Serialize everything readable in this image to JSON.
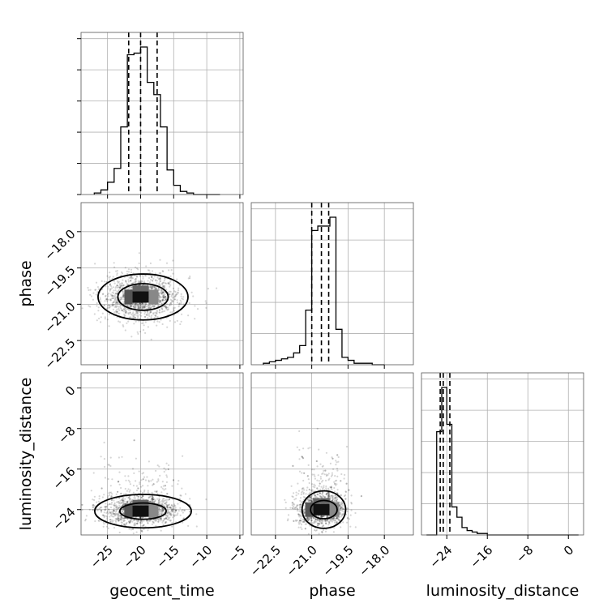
{
  "chart_data": {
    "type": "corner",
    "parameters": [
      "geocent_time",
      "phase",
      "luminosity_distance"
    ],
    "ranges": {
      "geocent_time": [
        -29,
        -4.5
      ],
      "phase": [
        -23.5,
        -16.8
      ],
      "luminosity_distance": [
        -29,
        3
      ]
    },
    "ticks": {
      "geocent_time": [
        -25,
        -20,
        -15,
        -10,
        -5
      ],
      "phase": [
        -22.5,
        -21.0,
        -19.5,
        -18.0
      ],
      "luminosity_distance": [
        -24,
        -16,
        -8,
        0
      ]
    },
    "tick_labels": {
      "geocent_time": [
        "−25",
        "−20",
        "−15",
        "−10",
        "−5"
      ],
      "phase": [
        "−22.5",
        "−21.0",
        "−19.5",
        "−18.0"
      ],
      "luminosity_distance": [
        "−24",
        "−16",
        "−8",
        "0"
      ]
    },
    "quantiles": {
      "geocent_time": [
        -21.8,
        -20.0,
        -17.5
      ],
      "phase": [
        -21.0,
        -20.6,
        -20.3
      ],
      "luminosity_distance": [
        -25.3,
        -24.7,
        -23.4
      ]
    },
    "histograms": {
      "geocent_time": {
        "edges": [
          -27,
          -26,
          -25,
          -24,
          -23,
          -22,
          -21,
          -20,
          -19,
          -18,
          -17,
          -16,
          -15,
          -14,
          -13,
          -12,
          -11,
          -10,
          -9,
          -8
        ],
        "counts": [
          0.01,
          0.03,
          0.08,
          0.17,
          0.44,
          0.91,
          0.92,
          0.96,
          0.73,
          0.65,
          0.44,
          0.16,
          0.06,
          0.02,
          0.01,
          0,
          0,
          0,
          0
        ]
      },
      "phase": {
        "edges": [
          -23.0,
          -22.75,
          -22.5,
          -22.25,
          -22.0,
          -21.75,
          -21.5,
          -21.25,
          -21.0,
          -20.75,
          -20.5,
          -20.25,
          -20.0,
          -19.75,
          -19.5,
          -19.25,
          -19.0,
          -18.75,
          -18.5,
          -18.25,
          -18.0
        ],
        "counts": [
          0.01,
          0.02,
          0.03,
          0.04,
          0.05,
          0.08,
          0.13,
          0.37,
          0.91,
          0.94,
          0.94,
          1.0,
          0.24,
          0.05,
          0.03,
          0.01,
          0.01,
          0.01,
          0,
          0
        ]
      },
      "luminosity_distance": {
        "edges": [
          -28,
          -27,
          -26,
          -25,
          -24,
          -23,
          -22,
          -21,
          -20,
          -19,
          -18,
          -17,
          -16,
          -15,
          -14,
          -13,
          -12,
          -11,
          -10,
          -9,
          -8,
          -7,
          -6,
          -5,
          -4,
          -3,
          -2,
          -1,
          0,
          1,
          2
        ],
        "counts": [
          0,
          0,
          0.7,
          1.0,
          0.75,
          0.19,
          0.12,
          0.05,
          0.03,
          0.02,
          0.01,
          0.01,
          0,
          0,
          0,
          0,
          0,
          0,
          0,
          0,
          0,
          0,
          0,
          0,
          0,
          0,
          0,
          0,
          0,
          0
        ]
      }
    },
    "joint": [
      {
        "x": "geocent_time",
        "y": "phase",
        "center": [
          -20.0,
          -20.7
        ],
        "sd": [
          3.0,
          0.45
        ],
        "contours": [
          [
            3.8,
            0.55
          ],
          [
            6.8,
            0.95
          ]
        ]
      },
      {
        "x": "geocent_time",
        "y": "luminosity_distance",
        "center": [
          -20.0,
          -24.3
        ],
        "sd": [
          3.0,
          1.4
        ],
        "contours": [
          [
            3.5,
            1.6
          ],
          [
            7.3,
            3.3
          ]
        ]
      },
      {
        "x": "phase",
        "y": "luminosity_distance",
        "center": [
          -20.6,
          -24.0
        ],
        "sd": [
          0.5,
          1.6
        ],
        "contours": [
          [
            0.55,
            1.8
          ],
          [
            0.9,
            3.7
          ]
        ]
      }
    ],
    "grid": true
  }
}
